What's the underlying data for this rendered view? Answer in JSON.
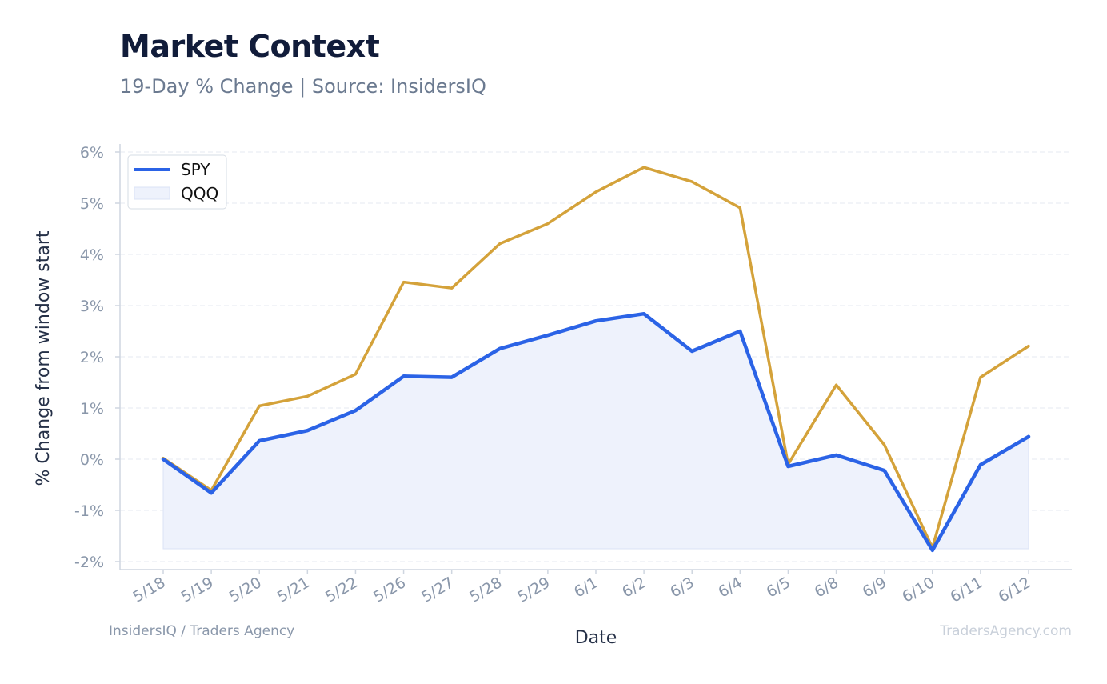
{
  "header": {
    "title": "Market Context",
    "subtitle": "19-Day % Change | Source: InsidersIQ"
  },
  "footer": {
    "left": "InsidersIQ / Traders Agency",
    "right": "TradersAgency.com"
  },
  "colors": {
    "spy": "#2b63e6",
    "qqq": "#d4a23a",
    "spy_fill": "#eef2fc",
    "grid": "#e6eaf0",
    "axis": "#cfd6e0"
  },
  "chart_data": {
    "type": "line",
    "xlabel": "Date",
    "ylabel": "% Change from window start",
    "ylim": [
      -2,
      6
    ],
    "yticks": [
      6,
      5,
      4,
      3,
      2,
      1,
      0,
      -1,
      -2
    ],
    "ytick_labels": [
      "6%",
      "5%",
      "4%",
      "3%",
      "2%",
      "1%",
      "0%",
      "-1%",
      "-2%"
    ],
    "grid": true,
    "legend_position": "top-left",
    "categories": [
      "5/18",
      "5/19",
      "5/20",
      "5/21",
      "5/22",
      "5/26",
      "5/27",
      "5/28",
      "5/29",
      "6/1",
      "6/2",
      "6/3",
      "6/4",
      "6/5",
      "6/8",
      "6/9",
      "6/10",
      "6/11",
      "6/12"
    ],
    "series": [
      {
        "name": "SPY",
        "values": [
          0.0,
          -0.66,
          0.36,
          0.56,
          0.95,
          1.62,
          1.6,
          2.16,
          2.42,
          2.7,
          2.84,
          2.11,
          2.5,
          -0.14,
          0.08,
          -0.22,
          -1.78,
          -0.11,
          0.44
        ]
      },
      {
        "name": "QQQ",
        "values": [
          0.02,
          -0.61,
          1.04,
          1.23,
          1.66,
          3.46,
          3.34,
          4.21,
          4.6,
          5.22,
          5.7,
          5.42,
          4.91,
          -0.1,
          1.45,
          0.28,
          -1.73,
          1.6,
          2.21
        ]
      }
    ]
  }
}
